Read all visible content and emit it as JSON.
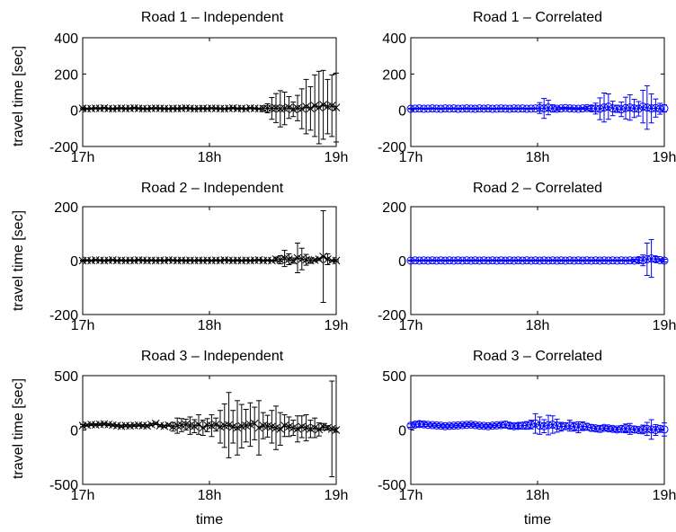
{
  "chart_data": [
    {
      "type": "errorbar",
      "title": "Road 1 – Independent",
      "ylabel": "travel time [sec]",
      "xlabel": "",
      "marker": "x",
      "color": "#000000",
      "xlim": [
        0,
        2
      ],
      "ylim": [
        -200,
        400
      ],
      "yticks": [
        -200,
        0,
        200,
        400
      ],
      "xticks": [
        0,
        1,
        2
      ],
      "xticklabels": [
        "17h",
        "18h",
        "19h"
      ],
      "x": [
        0.0,
        0.034,
        0.068,
        0.102,
        0.136,
        0.17,
        0.203,
        0.237,
        0.271,
        0.305,
        0.339,
        0.373,
        0.407,
        0.441,
        0.475,
        0.508,
        0.542,
        0.576,
        0.61,
        0.644,
        0.678,
        0.712,
        0.746,
        0.78,
        0.814,
        0.847,
        0.881,
        0.915,
        0.949,
        0.983,
        1.017,
        1.051,
        1.085,
        1.119,
        1.153,
        1.186,
        1.22,
        1.254,
        1.288,
        1.322,
        1.356,
        1.39,
        1.424,
        1.458,
        1.492,
        1.525,
        1.559,
        1.593,
        1.627,
        1.661,
        1.695,
        1.729,
        1.763,
        1.797,
        1.831,
        1.864,
        1.898,
        1.932,
        1.966,
        2.0
      ],
      "y": [
        10,
        8,
        9,
        11,
        10,
        12,
        9,
        8,
        10,
        11,
        9,
        10,
        12,
        10,
        9,
        8,
        10,
        11,
        10,
        9,
        8,
        10,
        9,
        10,
        12,
        10,
        8,
        9,
        10,
        9,
        11,
        10,
        9,
        8,
        10,
        12,
        9,
        10,
        8,
        12,
        10,
        8,
        9,
        11,
        10,
        12,
        8,
        10,
        15,
        5,
        12,
        8,
        20,
        10,
        25,
        15,
        30,
        20,
        25,
        15
      ],
      "err": [
        3,
        3,
        3,
        3,
        3,
        3,
        3,
        3,
        3,
        3,
        3,
        3,
        3,
        3,
        3,
        3,
        3,
        3,
        3,
        3,
        3,
        3,
        3,
        3,
        3,
        3,
        3,
        3,
        3,
        3,
        3,
        3,
        3,
        3,
        3,
        3,
        3,
        3,
        3,
        3,
        3,
        3,
        15,
        25,
        60,
        80,
        100,
        90,
        60,
        40,
        70,
        110,
        150,
        120,
        170,
        200,
        190,
        150,
        170,
        190
      ]
    },
    {
      "type": "errorbar",
      "title": "Road 1 – Correlated",
      "ylabel": "",
      "xlabel": "",
      "marker": "o",
      "color": "#0000ff",
      "xlim": [
        0,
        2
      ],
      "ylim": [
        -200,
        400
      ],
      "yticks": [
        -200,
        0,
        200,
        400
      ],
      "xticks": [
        0,
        1,
        2
      ],
      "xticklabels": [
        "17h",
        "18h",
        "19h"
      ],
      "x": [
        0.0,
        0.034,
        0.068,
        0.102,
        0.136,
        0.17,
        0.203,
        0.237,
        0.271,
        0.305,
        0.339,
        0.373,
        0.407,
        0.441,
        0.475,
        0.508,
        0.542,
        0.576,
        0.61,
        0.644,
        0.678,
        0.712,
        0.746,
        0.78,
        0.814,
        0.847,
        0.881,
        0.915,
        0.949,
        0.983,
        1.017,
        1.051,
        1.085,
        1.119,
        1.153,
        1.186,
        1.22,
        1.254,
        1.288,
        1.322,
        1.356,
        1.39,
        1.424,
        1.458,
        1.492,
        1.525,
        1.559,
        1.593,
        1.627,
        1.661,
        1.695,
        1.729,
        1.763,
        1.797,
        1.831,
        1.864,
        1.898,
        1.932,
        1.966,
        2.0
      ],
      "y": [
        8,
        9,
        10,
        8,
        9,
        10,
        9,
        8,
        10,
        9,
        10,
        8,
        9,
        10,
        9,
        8,
        10,
        9,
        10,
        8,
        9,
        10,
        9,
        8,
        10,
        9,
        10,
        8,
        9,
        10,
        12,
        10,
        15,
        10,
        8,
        10,
        12,
        10,
        9,
        8,
        10,
        12,
        10,
        9,
        8,
        15,
        20,
        10,
        8,
        5,
        12,
        15,
        10,
        8,
        20,
        15,
        10,
        12,
        8,
        10
      ],
      "err": [
        3,
        3,
        3,
        3,
        3,
        3,
        3,
        3,
        3,
        3,
        3,
        3,
        3,
        3,
        3,
        3,
        3,
        3,
        3,
        3,
        3,
        3,
        3,
        3,
        3,
        3,
        3,
        3,
        3,
        3,
        30,
        55,
        40,
        20,
        10,
        5,
        5,
        5,
        5,
        5,
        5,
        10,
        15,
        30,
        60,
        80,
        70,
        40,
        20,
        40,
        60,
        70,
        50,
        40,
        90,
        120,
        80,
        50,
        30,
        20
      ]
    },
    {
      "type": "errorbar",
      "title": "Road 2 – Independent",
      "ylabel": "travel time [sec]",
      "xlabel": "",
      "marker": "x",
      "color": "#000000",
      "xlim": [
        0,
        2
      ],
      "ylim": [
        -200,
        200
      ],
      "yticks": [
        -200,
        0,
        200
      ],
      "xticks": [
        0,
        1,
        2
      ],
      "xticklabels": [
        "17h",
        "18h",
        "19h"
      ],
      "x": [
        0.0,
        0.034,
        0.068,
        0.102,
        0.136,
        0.17,
        0.203,
        0.237,
        0.271,
        0.305,
        0.339,
        0.373,
        0.407,
        0.441,
        0.475,
        0.508,
        0.542,
        0.576,
        0.61,
        0.644,
        0.678,
        0.712,
        0.746,
        0.78,
        0.814,
        0.847,
        0.881,
        0.915,
        0.949,
        0.983,
        1.017,
        1.051,
        1.085,
        1.119,
        1.153,
        1.186,
        1.22,
        1.254,
        1.288,
        1.322,
        1.356,
        1.39,
        1.424,
        1.458,
        1.492,
        1.525,
        1.559,
        1.593,
        1.627,
        1.661,
        1.695,
        1.729,
        1.763,
        1.797,
        1.831,
        1.864,
        1.898,
        1.932,
        1.966,
        2.0
      ],
      "y": [
        0,
        1,
        0,
        2,
        1,
        0,
        1,
        2,
        0,
        1,
        0,
        1,
        0,
        2,
        1,
        0,
        1,
        0,
        1,
        0,
        2,
        1,
        0,
        1,
        0,
        1,
        0,
        1,
        0,
        1,
        0,
        1,
        0,
        2,
        1,
        0,
        1,
        0,
        1,
        0,
        1,
        2,
        0,
        1,
        0,
        5,
        3,
        8,
        5,
        0,
        10,
        6,
        3,
        0,
        2,
        5,
        15,
        5,
        0,
        0
      ],
      "err": [
        2,
        2,
        2,
        2,
        2,
        2,
        2,
        2,
        2,
        2,
        2,
        2,
        2,
        2,
        2,
        2,
        2,
        2,
        2,
        2,
        2,
        2,
        2,
        2,
        2,
        2,
        2,
        2,
        2,
        2,
        2,
        2,
        2,
        2,
        2,
        2,
        2,
        2,
        2,
        2,
        2,
        2,
        2,
        2,
        2,
        8,
        15,
        30,
        20,
        10,
        55,
        40,
        20,
        10,
        5,
        5,
        170,
        20,
        3,
        3
      ]
    },
    {
      "type": "errorbar",
      "title": "Road 2 – Correlated",
      "ylabel": "",
      "xlabel": "",
      "marker": "o",
      "color": "#0000ff",
      "xlim": [
        0,
        2
      ],
      "ylim": [
        -200,
        200
      ],
      "yticks": [
        -200,
        0,
        200
      ],
      "xticks": [
        0,
        1,
        2
      ],
      "xticklabels": [
        "17h",
        "18h",
        "19h"
      ],
      "x": [
        0.0,
        0.034,
        0.068,
        0.102,
        0.136,
        0.17,
        0.203,
        0.237,
        0.271,
        0.305,
        0.339,
        0.373,
        0.407,
        0.441,
        0.475,
        0.508,
        0.542,
        0.576,
        0.61,
        0.644,
        0.678,
        0.712,
        0.746,
        0.78,
        0.814,
        0.847,
        0.881,
        0.915,
        0.949,
        0.983,
        1.017,
        1.051,
        1.085,
        1.119,
        1.153,
        1.186,
        1.22,
        1.254,
        1.288,
        1.322,
        1.356,
        1.39,
        1.424,
        1.458,
        1.492,
        1.525,
        1.559,
        1.593,
        1.627,
        1.661,
        1.695,
        1.729,
        1.763,
        1.797,
        1.831,
        1.864,
        1.898,
        1.932,
        1.966,
        2.0
      ],
      "y": [
        0,
        1,
        0,
        1,
        0,
        1,
        0,
        1,
        0,
        1,
        0,
        1,
        0,
        1,
        0,
        1,
        0,
        1,
        0,
        1,
        0,
        1,
        0,
        1,
        0,
        1,
        0,
        1,
        0,
        1,
        0,
        1,
        0,
        1,
        0,
        1,
        0,
        1,
        0,
        1,
        0,
        1,
        0,
        1,
        0,
        1,
        0,
        1,
        0,
        1,
        0,
        1,
        0,
        2,
        1,
        5,
        8,
        5,
        2,
        0
      ],
      "err": [
        2,
        2,
        2,
        2,
        2,
        2,
        2,
        2,
        2,
        2,
        2,
        2,
        2,
        2,
        2,
        2,
        2,
        2,
        2,
        2,
        2,
        2,
        2,
        2,
        2,
        2,
        2,
        2,
        2,
        2,
        2,
        2,
        2,
        2,
        2,
        2,
        2,
        2,
        2,
        2,
        2,
        2,
        2,
        2,
        2,
        2,
        2,
        2,
        2,
        2,
        2,
        2,
        5,
        10,
        20,
        60,
        70,
        10,
        5,
        5
      ]
    },
    {
      "type": "errorbar",
      "title": "Road 3 – Independent",
      "ylabel": "travel time [sec]",
      "xlabel": "time",
      "marker": "x",
      "color": "#000000",
      "xlim": [
        0,
        2
      ],
      "ylim": [
        -500,
        500
      ],
      "yticks": [
        -500,
        0,
        500
      ],
      "xticks": [
        0,
        1,
        2
      ],
      "xticklabels": [
        "17h",
        "18h",
        "19h"
      ],
      "x": [
        0.0,
        0.034,
        0.068,
        0.102,
        0.136,
        0.17,
        0.203,
        0.237,
        0.271,
        0.305,
        0.339,
        0.373,
        0.407,
        0.441,
        0.475,
        0.508,
        0.542,
        0.576,
        0.61,
        0.644,
        0.678,
        0.712,
        0.746,
        0.78,
        0.814,
        0.847,
        0.881,
        0.915,
        0.949,
        0.983,
        1.017,
        1.051,
        1.085,
        1.119,
        1.153,
        1.186,
        1.22,
        1.254,
        1.288,
        1.322,
        1.356,
        1.39,
        1.424,
        1.458,
        1.492,
        1.525,
        1.559,
        1.593,
        1.627,
        1.661,
        1.695,
        1.729,
        1.763,
        1.797,
        1.831,
        1.864,
        1.898,
        1.932,
        1.966,
        2.0
      ],
      "y": [
        40,
        45,
        50,
        48,
        52,
        55,
        50,
        45,
        40,
        35,
        40,
        38,
        42,
        45,
        40,
        38,
        50,
        60,
        40,
        35,
        45,
        30,
        40,
        45,
        50,
        40,
        35,
        50,
        20,
        45,
        40,
        50,
        30,
        40,
        45,
        30,
        20,
        35,
        40,
        50,
        60,
        20,
        40,
        35,
        30,
        20,
        10,
        40,
        30,
        20,
        10,
        30,
        20,
        10,
        20,
        5,
        30,
        20,
        10,
        0
      ],
      "err": [
        10,
        10,
        10,
        10,
        10,
        10,
        10,
        10,
        10,
        10,
        10,
        10,
        10,
        10,
        10,
        10,
        10,
        10,
        10,
        10,
        10,
        40,
        70,
        60,
        50,
        80,
        60,
        90,
        70,
        60,
        100,
        60,
        150,
        200,
        300,
        150,
        250,
        200,
        150,
        200,
        150,
        250,
        120,
        100,
        150,
        200,
        150,
        100,
        90,
        70,
        120,
        100,
        120,
        80,
        90,
        60,
        30,
        20,
        440,
        20
      ]
    },
    {
      "type": "errorbar",
      "title": "Road 3 – Correlated",
      "ylabel": "",
      "xlabel": "time",
      "marker": "o",
      "color": "#0000ff",
      "xlim": [
        0,
        2
      ],
      "ylim": [
        -500,
        500
      ],
      "yticks": [
        -500,
        0,
        500
      ],
      "xticks": [
        0,
        1,
        2
      ],
      "xticklabels": [
        "17h",
        "18h",
        "19h"
      ],
      "x": [
        0.0,
        0.034,
        0.068,
        0.102,
        0.136,
        0.17,
        0.203,
        0.237,
        0.271,
        0.305,
        0.339,
        0.373,
        0.407,
        0.441,
        0.475,
        0.508,
        0.542,
        0.576,
        0.61,
        0.644,
        0.678,
        0.712,
        0.746,
        0.78,
        0.814,
        0.847,
        0.881,
        0.915,
        0.949,
        0.983,
        1.017,
        1.051,
        1.085,
        1.119,
        1.153,
        1.186,
        1.22,
        1.254,
        1.288,
        1.322,
        1.356,
        1.39,
        1.424,
        1.458,
        1.492,
        1.525,
        1.559,
        1.593,
        1.627,
        1.661,
        1.695,
        1.729,
        1.763,
        1.797,
        1.831,
        1.864,
        1.898,
        1.932,
        1.966,
        2.0
      ],
      "y": [
        40,
        50,
        55,
        52,
        48,
        45,
        42,
        40,
        35,
        38,
        40,
        42,
        45,
        48,
        50,
        45,
        40,
        38,
        35,
        40,
        42,
        45,
        50,
        40,
        35,
        38,
        40,
        42,
        50,
        60,
        40,
        35,
        45,
        50,
        40,
        30,
        35,
        40,
        30,
        25,
        35,
        30,
        20,
        15,
        10,
        20,
        15,
        10,
        5,
        10,
        15,
        10,
        5,
        0,
        5,
        10,
        5,
        0,
        10,
        5
      ],
      "err": [
        15,
        20,
        25,
        20,
        15,
        15,
        15,
        15,
        15,
        15,
        15,
        15,
        15,
        15,
        15,
        15,
        15,
        15,
        15,
        15,
        15,
        20,
        30,
        25,
        20,
        25,
        30,
        35,
        40,
        90,
        80,
        60,
        90,
        80,
        60,
        40,
        30,
        50,
        40,
        50,
        40,
        30,
        30,
        20,
        30,
        20,
        20,
        20,
        20,
        30,
        40,
        50,
        30,
        20,
        40,
        60,
        90,
        50,
        30,
        60
      ]
    }
  ]
}
